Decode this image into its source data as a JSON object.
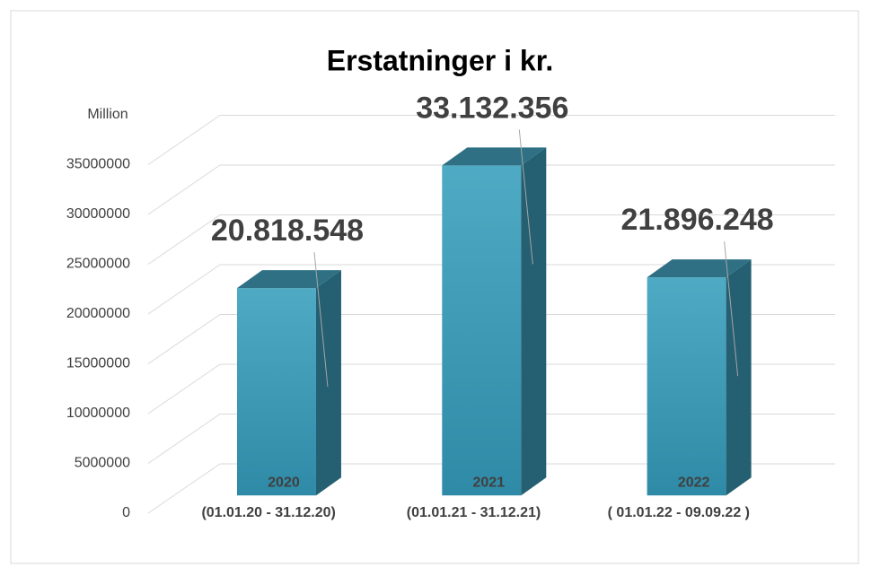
{
  "chart_data": {
    "type": "bar3d",
    "title": "Erstatninger i kr.",
    "categories": [
      "2020",
      "2021",
      "2022"
    ],
    "periods": [
      "(01.01.20 - 31.12.20)",
      "(01.01.21 - 31.12.21)",
      "( 01.01.22 - 09.09.22 )"
    ],
    "values": [
      20818548,
      33132356,
      21896248
    ],
    "value_labels": [
      "20.818.548",
      "33.132.356",
      "21.896.248"
    ],
    "color": "#3f9ab5",
    "ylim": [
      0,
      40000000
    ],
    "yticks": [
      0,
      5000000,
      10000000,
      15000000,
      20000000,
      25000000,
      30000000,
      35000000,
      {
        "value": 40000000,
        "label": "Million"
      }
    ],
    "grid": true
  }
}
